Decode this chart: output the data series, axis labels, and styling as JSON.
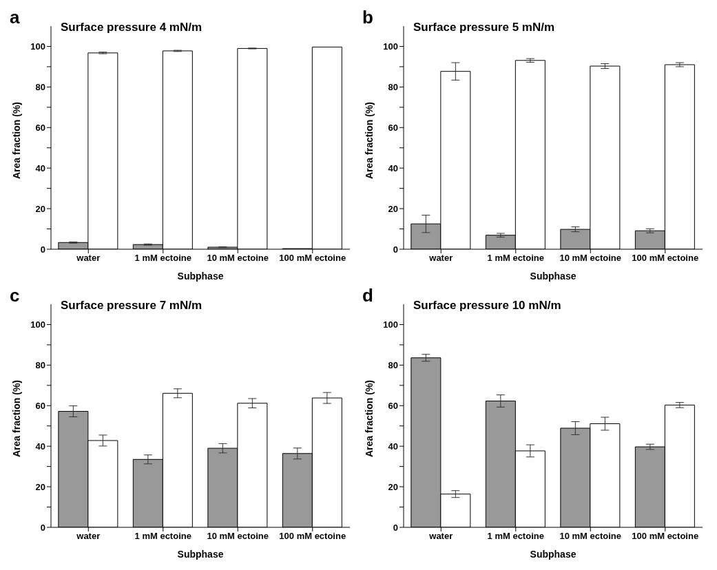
{
  "chart_data": [
    {
      "type": "bar",
      "annotations": [
        "a"
      ],
      "title": "Surface pressure 4 mN/m",
      "xlabel": "Subphase",
      "ylabel": "Area fraction (%)",
      "categories": [
        "water",
        "1 mM ectoine",
        "10 mM ectoine",
        "100 mM ectoine"
      ],
      "ylim": [
        0,
        110
      ],
      "yticks": [
        0,
        {
          "value": 10,
          "label": null
        },
        20,
        {
          "value": 30,
          "label": null
        },
        40,
        {
          "value": 50,
          "label": null
        },
        60,
        {
          "value": 70,
          "label": null
        },
        80,
        {
          "value": 90,
          "label": null
        },
        100
      ],
      "legend": false,
      "grid": false,
      "series": [
        {
          "color": "#999999",
          "values": [
            3.3,
            2.3,
            1.0,
            0.3
          ],
          "errors": [
            0.3,
            0.3,
            0.2,
            null
          ]
        },
        {
          "color": "#ffffff",
          "values": [
            96.8,
            97.8,
            99.0,
            99.7
          ],
          "errors": [
            0.4,
            0.3,
            0.2,
            null
          ]
        }
      ]
    },
    {
      "type": "bar",
      "annotations": [
        "b"
      ],
      "title": "Surface pressure 5 mN/m",
      "xlabel": "Subphase",
      "ylabel": "Area fraction (%)",
      "categories": [
        "water",
        "1 mM ectoine",
        "10 mM ectoine",
        "100 mM ectoine"
      ],
      "ylim": [
        0,
        110
      ],
      "yticks": [
        0,
        {
          "value": 10,
          "label": null
        },
        20,
        {
          "value": 30,
          "label": null
        },
        40,
        {
          "value": 50,
          "label": null
        },
        60,
        {
          "value": 70,
          "label": null
        },
        80,
        {
          "value": 90,
          "label": null
        },
        100
      ],
      "legend": false,
      "grid": false,
      "series": [
        {
          "color": "#999999",
          "values": [
            12.5,
            6.9,
            9.8,
            9.1
          ],
          "errors": [
            4.3,
            0.9,
            1.2,
            1.0
          ]
        },
        {
          "color": "#ffffff",
          "values": [
            87.7,
            93.1,
            90.3,
            91.0
          ],
          "errors": [
            4.3,
            0.9,
            1.2,
            1.0
          ]
        }
      ]
    },
    {
      "type": "bar",
      "annotations": [
        "c"
      ],
      "title": "Surface pressure 7 mN/m",
      "xlabel": "Subphase",
      "ylabel": "Area fraction (%)",
      "categories": [
        "water",
        "1 mM ectoine",
        "10 mM ectoine",
        "100 mM ectoine"
      ],
      "ylim": [
        0,
        110
      ],
      "yticks": [
        0,
        {
          "value": 10,
          "label": null
        },
        20,
        {
          "value": 30,
          "label": null
        },
        40,
        {
          "value": 50,
          "label": null
        },
        60,
        {
          "value": 70,
          "label": null
        },
        80,
        {
          "value": 90,
          "label": null
        },
        100
      ],
      "legend": false,
      "grid": false,
      "series": [
        {
          "color": "#999999",
          "values": [
            57.2,
            33.5,
            39.0,
            36.4
          ],
          "errors": [
            2.7,
            2.2,
            2.3,
            2.7
          ]
        },
        {
          "color": "#ffffff",
          "values": [
            42.8,
            66.1,
            61.2,
            63.8
          ],
          "errors": [
            2.7,
            2.2,
            2.3,
            2.7
          ]
        }
      ]
    },
    {
      "type": "bar",
      "annotations": [
        "d"
      ],
      "title": "Surface pressure 10 mN/m",
      "xlabel": "Subphase",
      "ylabel": "Area fraction (%)",
      "categories": [
        "water",
        "1 mM ectoine",
        "10 mM ectoine",
        "100 mM ectoine"
      ],
      "ylim": [
        0,
        110
      ],
      "yticks": [
        0,
        {
          "value": 10,
          "label": null
        },
        20,
        {
          "value": 30,
          "label": null
        },
        40,
        {
          "value": 50,
          "label": null
        },
        60,
        {
          "value": 70,
          "label": null
        },
        80,
        {
          "value": 90,
          "label": null
        },
        100
      ],
      "legend": false,
      "grid": false,
      "series": [
        {
          "color": "#999999",
          "values": [
            83.6,
            62.3,
            48.9,
            39.7
          ],
          "errors": [
            1.7,
            3.0,
            3.2,
            1.3
          ]
        },
        {
          "color": "#ffffff",
          "values": [
            16.4,
            37.7,
            51.1,
            60.3
          ],
          "errors": [
            1.7,
            3.0,
            3.2,
            1.3
          ]
        }
      ]
    }
  ]
}
